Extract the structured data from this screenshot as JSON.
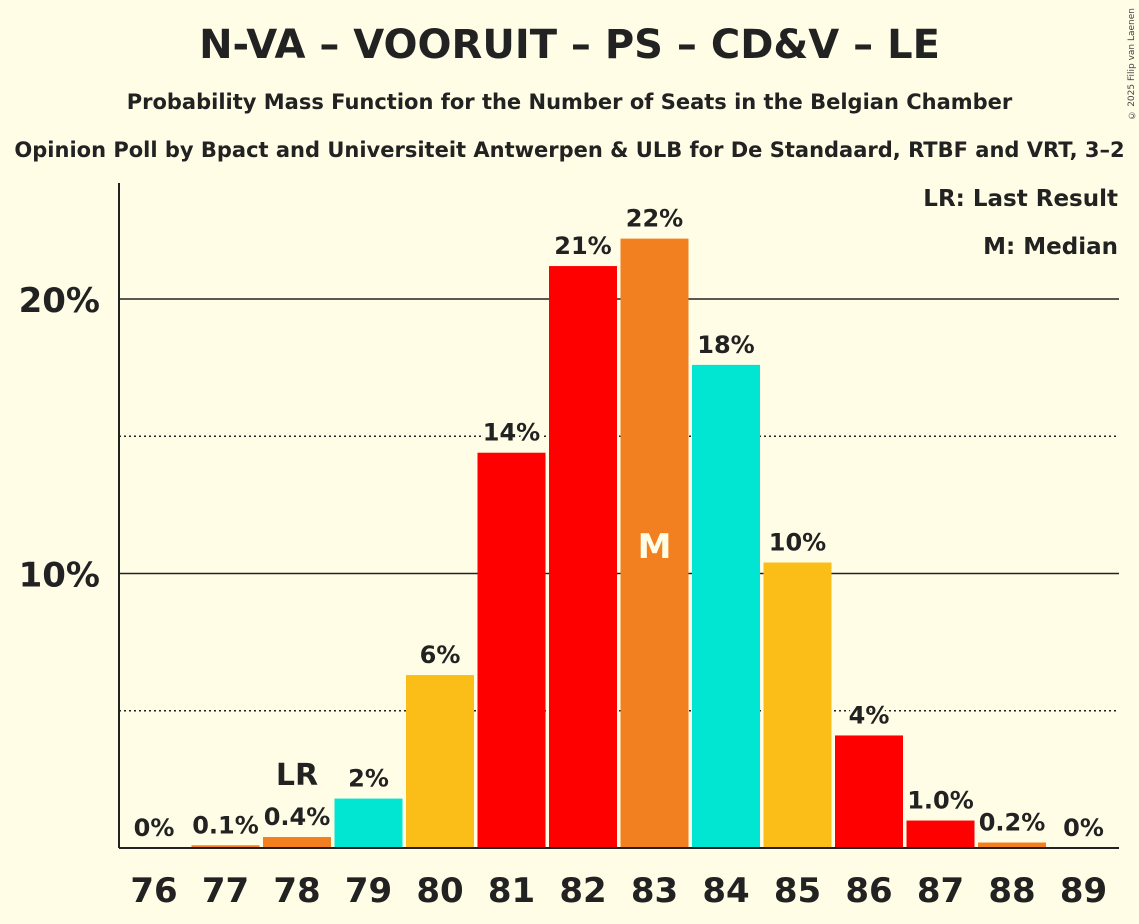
{
  "title": "N-VA – VOORUIT – PS – CD&V – LE",
  "subtitle": "Probability Mass Function for the Number of Seats in the Belgian Chamber",
  "subsubtitle": "Opinion Poll by Bpact and Universiteit Antwerpen & ULB for De Standaard, RTBF and VRT, 3–2",
  "copyright": "© 2025 Filip van Laenen",
  "legend": {
    "last_result": "LR: Last Result",
    "median": "M: Median"
  },
  "colors": {
    "background": "#fffde6",
    "red": "#ff0000",
    "orange": "#f28020",
    "turquoise": "#00e6d2",
    "yellow": "#fbbd17"
  },
  "chart_data": {
    "type": "bar",
    "categories": [
      "76",
      "77",
      "78",
      "79",
      "80",
      "81",
      "82",
      "83",
      "84",
      "85",
      "86",
      "87",
      "88",
      "89"
    ],
    "values": [
      0,
      0.1,
      0.4,
      1.8,
      6.3,
      14.4,
      21.2,
      22.2,
      17.6,
      10.4,
      4.1,
      1.0,
      0.2,
      0
    ],
    "value_labels": [
      "0%",
      "0.1%",
      "0.4%",
      "2%",
      "6%",
      "14%",
      "21%",
      "22%",
      "18%",
      "10%",
      "4%",
      "1.0%",
      "0.2%",
      "0%"
    ],
    "bar_colors": [
      "#ff0000",
      "#f28020",
      "#f28020",
      "#00e6d2",
      "#fbbd17",
      "#ff0000",
      "#ff0000",
      "#f28020",
      "#00e6d2",
      "#fbbd17",
      "#ff0000",
      "#ff0000",
      "#f28020",
      "#00e6d2"
    ],
    "ylim": [
      0,
      24
    ],
    "yticks": [
      10,
      20
    ],
    "ytick_labels": [
      "10%",
      "20%"
    ],
    "minor_gridlines": [
      5,
      15
    ],
    "last_result_category": "78",
    "last_result_label": "LR",
    "median_category": "83",
    "median_label": "M",
    "legend_position": "top-right"
  }
}
